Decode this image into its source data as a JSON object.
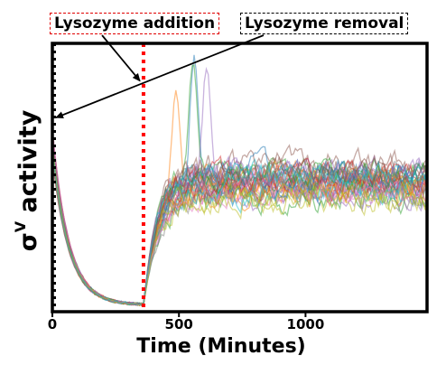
{
  "chart_data": {
    "type": "line",
    "xlabel": "Time (Minutes)",
    "ylabel": "σV activity",
    "ylabel_main": "σ",
    "ylabel_sup": "V",
    "ylabel_rest": " activity",
    "xlim": [
      0,
      1480
    ],
    "x_ticks": [
      0,
      500,
      1000
    ],
    "x_tick_labels": [
      "0",
      "500",
      "1000"
    ],
    "y_ticks_labeled": false,
    "grid": false,
    "legend": "none",
    "series_count": 40,
    "series_description_values": {
      "x_range": [
        0,
        1480
      ],
      "start_level": 0.62,
      "minimum_level": 0.02,
      "minimum_at": 360,
      "recovery_plateau": 0.48,
      "peak_max": 0.97,
      "peak_at": [
        455,
        650
      ]
    },
    "vertical_lines": [
      {
        "x": 360,
        "label": "Lysozyme addition",
        "color": "#ff0000",
        "style": "dotted"
      },
      {
        "x": 0,
        "label": "Lysozyme removal",
        "color": "#000000",
        "style": "dotted"
      }
    ],
    "annotations": [
      {
        "text": "Lysozyme addition",
        "target_x": 360,
        "target_y": 0.86,
        "box_color": "#e00000"
      },
      {
        "text": "Lysozyme removal",
        "target_x": 0,
        "target_y": 0.73,
        "box_color": "#000000"
      }
    ],
    "colors": [
      "#1f77b4",
      "#ff7f0e",
      "#2ca02c",
      "#d62728",
      "#9467bd",
      "#8c564b",
      "#e377c2",
      "#7f7f7f",
      "#bcbd22",
      "#17becf"
    ]
  }
}
